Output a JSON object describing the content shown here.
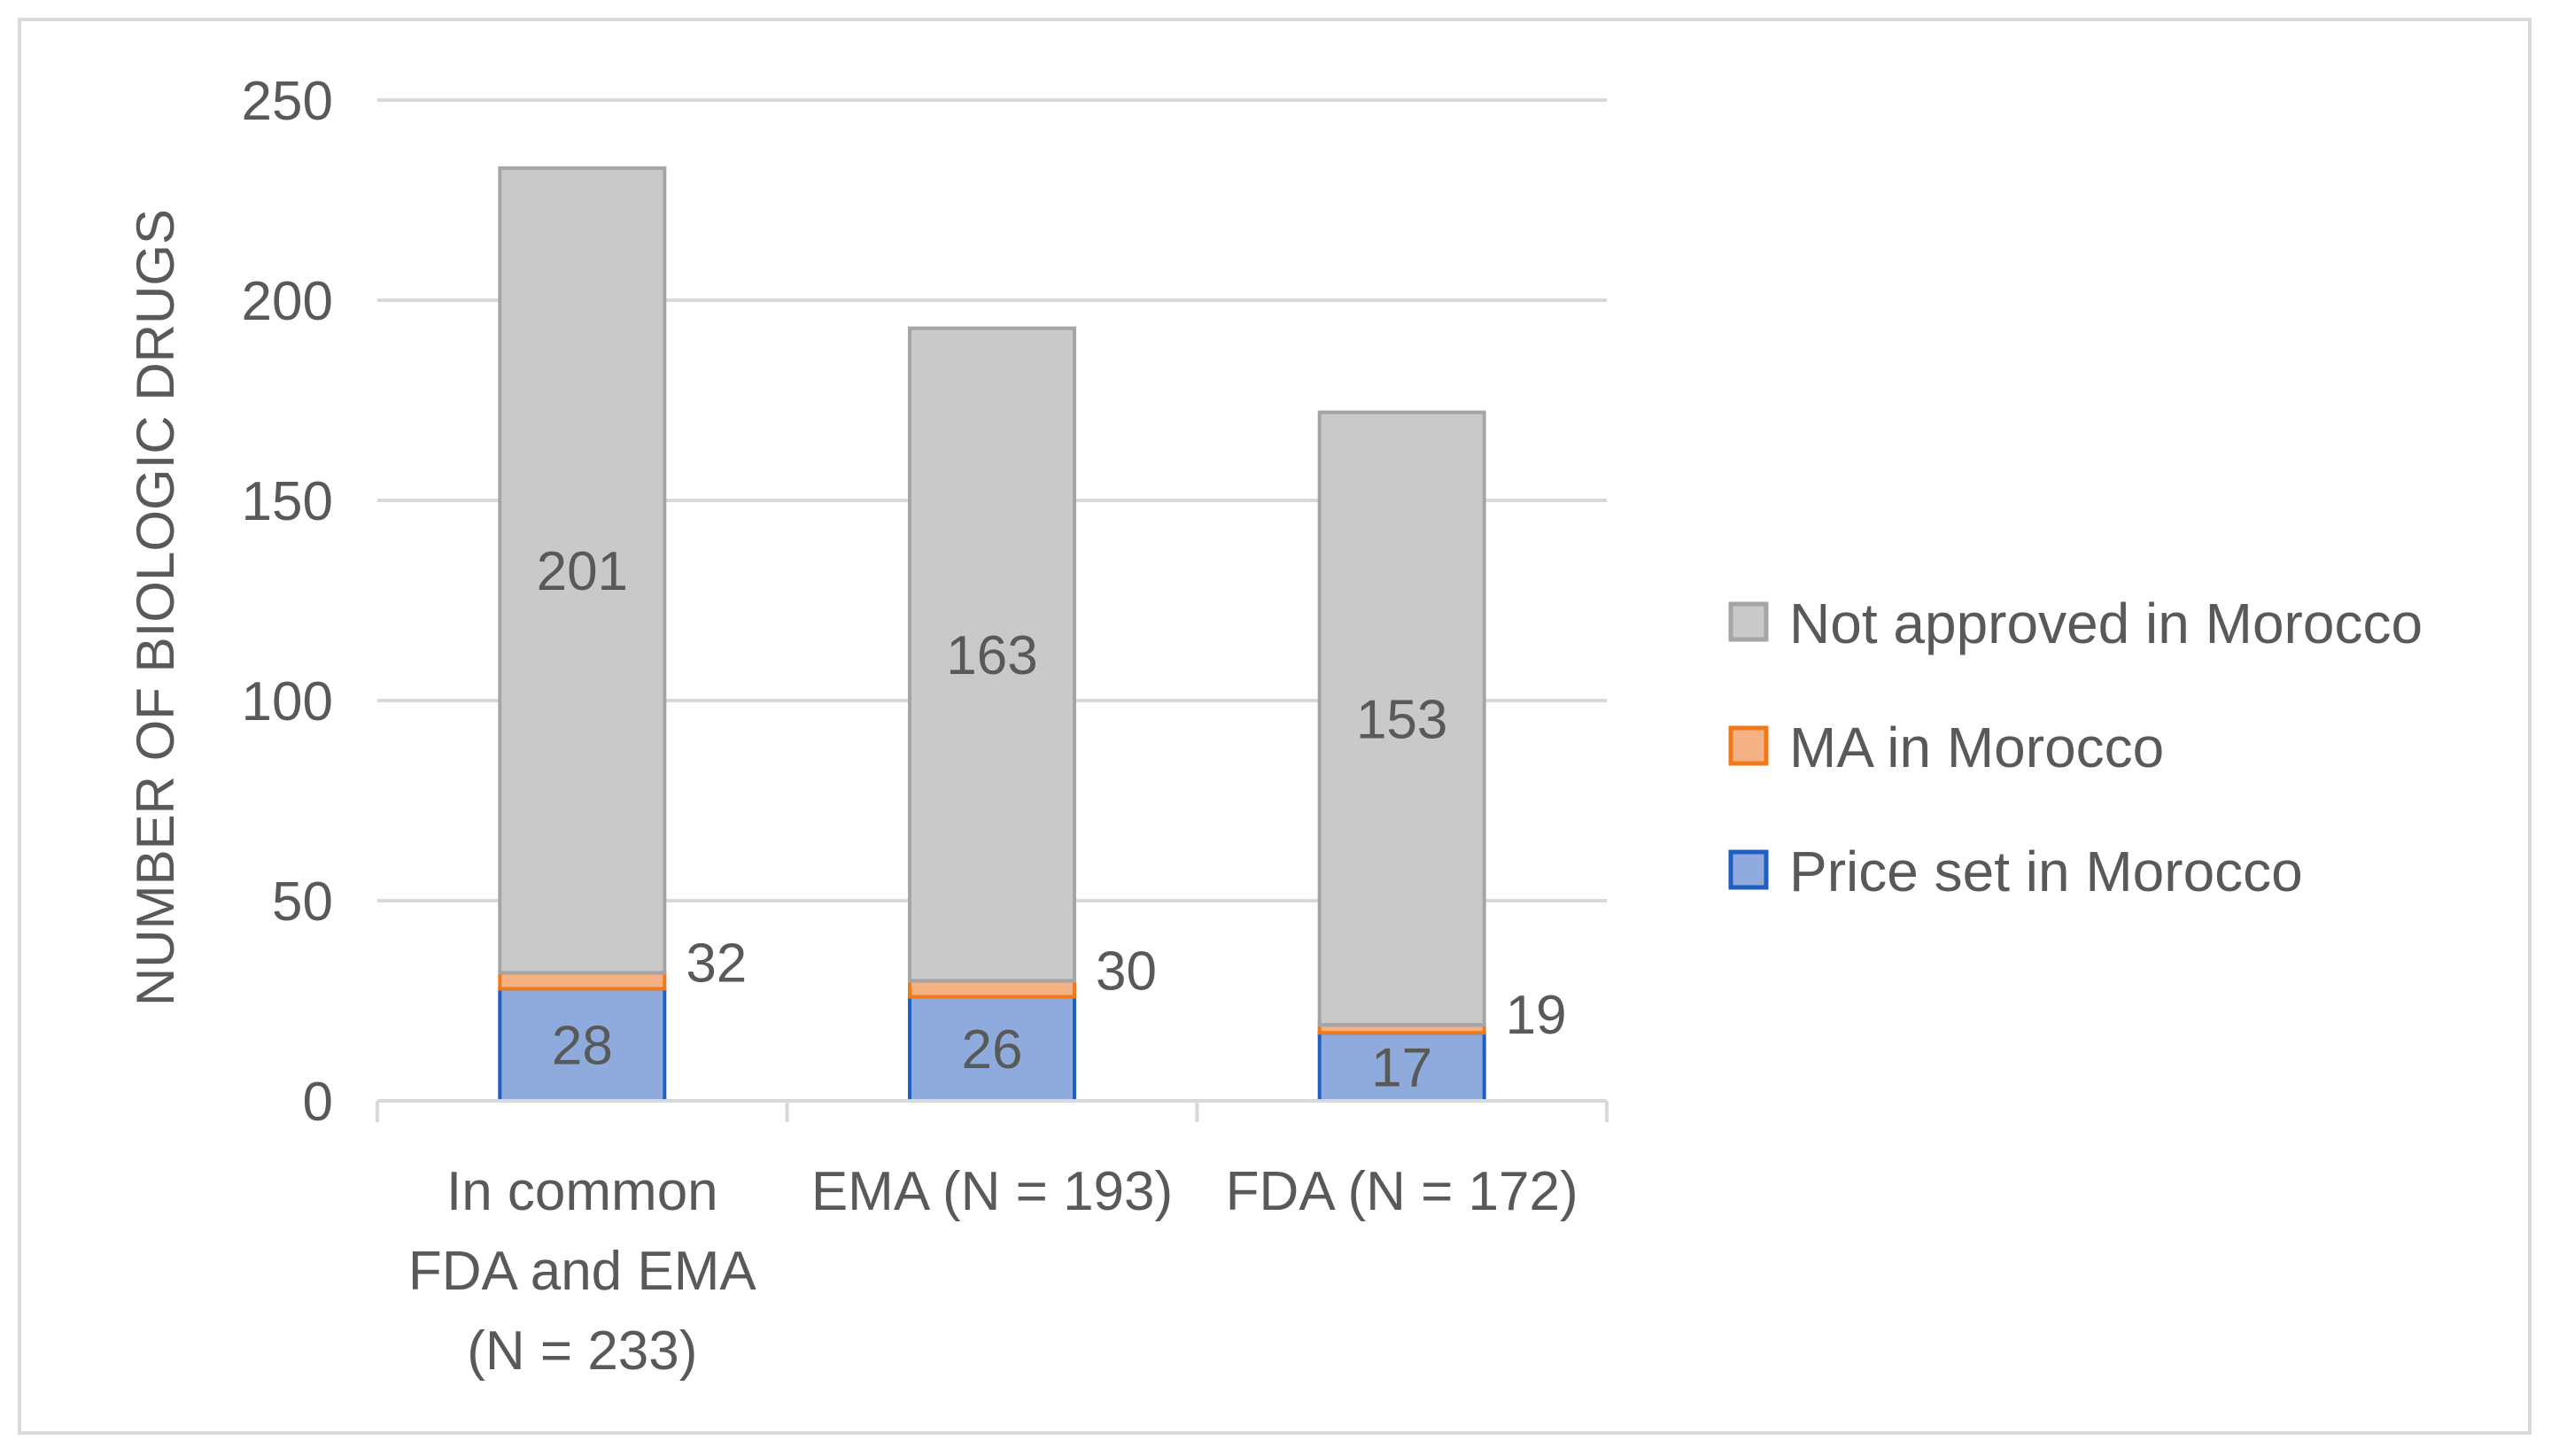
{
  "chart_data": {
    "type": "bar",
    "stacked": true,
    "title": "",
    "xlabel": "",
    "ylabel": "NUMBER OF BIOLOGIC DRUGS",
    "ylim": [
      0,
      250
    ],
    "yticks": [
      0,
      50,
      100,
      150,
      200,
      250
    ],
    "yticks_text": [
      "0",
      "50",
      "100",
      "150",
      "200",
      "250"
    ],
    "grid": true,
    "legend_position": "right",
    "categories": [
      [
        "In common",
        "FDA and EMA",
        "(N = 233)"
      ],
      [
        "EMA (N = 193)"
      ],
      [
        "FDA (N = 172)"
      ]
    ],
    "series": [
      {
        "name": "Price set in Morocco",
        "color": "#8faadc",
        "edge": "#1f5fbf",
        "values": [
          28,
          26,
          17
        ]
      },
      {
        "name": "MA in Morocco",
        "color": "#f4b183",
        "edge": "#f07a1a",
        "values": [
          4,
          4,
          2
        ]
      },
      {
        "name": "Not approved in Morocco",
        "color": "#c9c9c9",
        "edge": "#a5a5a5",
        "values": [
          201,
          163,
          153
        ]
      }
    ],
    "data_labels": {
      "inside_bottom": [
        "28",
        "26",
        "17"
      ],
      "inside_top": [
        "201",
        "163",
        "153"
      ],
      "cumulative_ma": [
        "32",
        "30",
        "19"
      ]
    },
    "legend_order": [
      "Not approved in Morocco",
      "MA in Morocco",
      "Price set in Morocco"
    ]
  }
}
